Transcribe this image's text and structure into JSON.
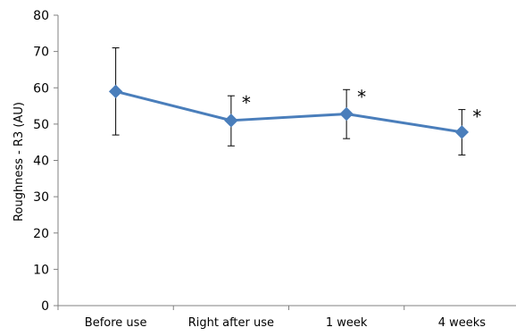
{
  "chart_data": {
    "type": "line",
    "title": "",
    "xlabel": "",
    "ylabel": "Roughness - R3 (AU)",
    "ylim": [
      0,
      80
    ],
    "yticks": [
      0,
      10,
      20,
      30,
      40,
      50,
      60,
      70,
      80
    ],
    "categories": [
      "Before use",
      "Right after use",
      "1 week",
      "4 weeks"
    ],
    "series": [
      {
        "values": [
          59,
          51,
          52.8,
          47.8
        ],
        "error_low": [
          47,
          44,
          46,
          41.5
        ],
        "error_high": [
          71,
          57.8,
          59.5,
          54
        ],
        "significance": [
          "",
          "*",
          "*",
          "*"
        ],
        "color": "#4a7ebb",
        "marker": "diamond"
      }
    ],
    "grid": false,
    "legend": "none"
  }
}
